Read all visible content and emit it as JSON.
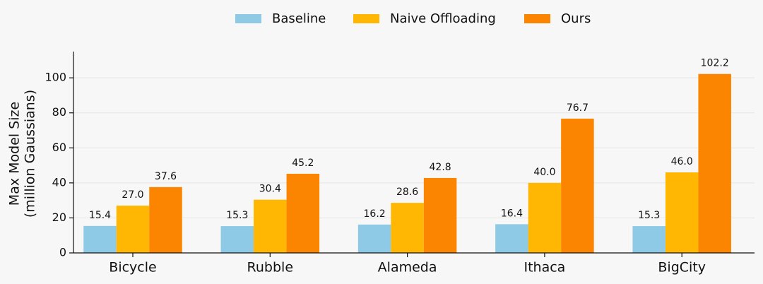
{
  "chart_data": {
    "type": "bar",
    "categories": [
      "Bicycle",
      "Rubble",
      "Alameda",
      "Ithaca",
      "BigCity"
    ],
    "series": [
      {
        "name": "Baseline",
        "color": "#8ecae6",
        "values": [
          15.4,
          15.3,
          16.2,
          16.4,
          15.3
        ],
        "value_labels": [
          "15.4",
          "15.3",
          "16.2",
          "16.4",
          "15.3"
        ]
      },
      {
        "name": "Naive Offloading",
        "color": "#ffb703",
        "values": [
          27.0,
          30.4,
          28.6,
          40.0,
          46.0
        ],
        "value_labels": [
          "27.0",
          "30.4",
          "28.6",
          "40.0",
          "46.0"
        ]
      },
      {
        "name": "Ours",
        "color": "#fb8500",
        "values": [
          37.6,
          45.2,
          42.8,
          76.7,
          102.2
        ],
        "value_labels": [
          "37.6",
          "45.2",
          "42.8",
          "76.7",
          "102.2"
        ]
      }
    ],
    "ylabel": [
      "Max Model Size",
      "(million Gaussians)"
    ],
    "ylim": [
      0,
      115
    ],
    "yticks": [
      0,
      20,
      40,
      60,
      80,
      100
    ],
    "grid": true,
    "legend": "top"
  }
}
